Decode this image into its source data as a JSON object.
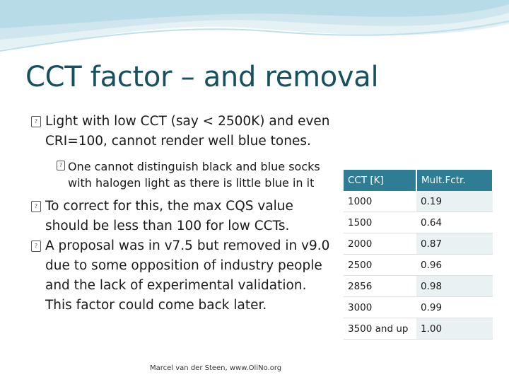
{
  "slide": {
    "title": "CCT factor – and removal",
    "bullets": [
      {
        "lines": [
          "Light with low CCT (say < 2500K) and even",
          "CRI=100, cannot render well blue tones."
        ],
        "level": 1
      },
      {
        "lines": [
          "One cannot distinguish black and blue socks",
          "with halogen light as there is little blue in it"
        ],
        "level": 2
      },
      {
        "lines": [
          "To correct for this, the max CQS value",
          "should be less than 100 for low CCTs."
        ],
        "level": 1
      },
      {
        "lines": [
          "A proposal was in v7.5 but removed in v9.0",
          "due to some opposition of industry people",
          "and the lack of experimental validation.",
          "This factor could come back later."
        ],
        "level": 1
      }
    ],
    "table": {
      "headers": [
        "CCT [K]",
        "Mult.Fctr."
      ],
      "rows": [
        [
          "1000",
          "0.19"
        ],
        [
          "1500",
          "0.64"
        ],
        [
          "2000",
          "0.87"
        ],
        [
          "2500",
          "0.96"
        ],
        [
          "2856",
          "0.98"
        ],
        [
          "3000",
          "0.99"
        ],
        [
          "3500 and up",
          "1.00"
        ]
      ]
    },
    "footer": "Marcel van der Steen, www.OliNo.org"
  },
  "colors": {
    "title": "#17505f",
    "table_header": "#2e7d95",
    "table_row_alt": "#eaf1f3",
    "wave_light": "#cfe6ee",
    "wave_mid": "#a9d3e0"
  },
  "icons": {
    "bullet": "missing-glyph-box-icon"
  }
}
